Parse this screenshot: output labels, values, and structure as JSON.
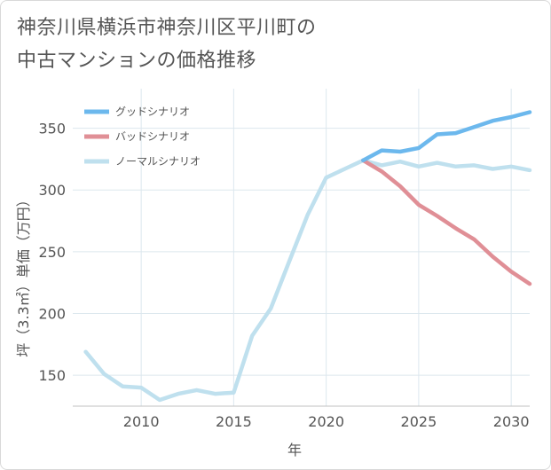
{
  "chart_data": {
    "type": "line",
    "title_lines": [
      "神奈川県横浜市神奈川区平川町の",
      "中古マンションの価格推移"
    ],
    "xlabel": "年",
    "ylabel": "坪（3.3㎡）単価（万円）",
    "xlim": [
      2006.3,
      2031
    ],
    "ylim": [
      125,
      382
    ],
    "x_ticks": [
      2010,
      2015,
      2020,
      2025,
      2030
    ],
    "y_ticks": [
      150,
      200,
      250,
      300,
      350
    ],
    "grid": true,
    "legend_position": "top-left",
    "series": [
      {
        "name": "グッドシナリオ",
        "color": "#6cb8ed",
        "x": [
          2022,
          2023,
          2024,
          2025,
          2026,
          2027,
          2028,
          2029,
          2030,
          2031
        ],
        "values": [
          324,
          332,
          331,
          334,
          345,
          346,
          351,
          356,
          359,
          363
        ]
      },
      {
        "name": "バッドシナリオ",
        "color": "#e08f96",
        "x": [
          2022,
          2023,
          2024,
          2025,
          2026,
          2027,
          2028,
          2029,
          2030,
          2031
        ],
        "values": [
          324,
          315,
          303,
          288,
          279,
          269,
          260,
          246,
          234,
          224
        ]
      },
      {
        "name": "ノーマルシナリオ",
        "color": "#bfe0ee",
        "x": [
          2007,
          2008,
          2009,
          2010,
          2011,
          2012,
          2013,
          2014,
          2015,
          2016,
          2017,
          2018,
          2019,
          2020,
          2021,
          2022,
          2023,
          2024,
          2025,
          2026,
          2027,
          2028,
          2029,
          2030,
          2031
        ],
        "values": [
          169,
          151,
          141,
          140,
          130,
          135,
          138,
          135,
          136,
          182,
          204,
          242,
          280,
          310,
          317,
          324,
          320,
          323,
          319,
          322,
          319,
          320,
          317,
          319,
          316
        ]
      }
    ]
  }
}
